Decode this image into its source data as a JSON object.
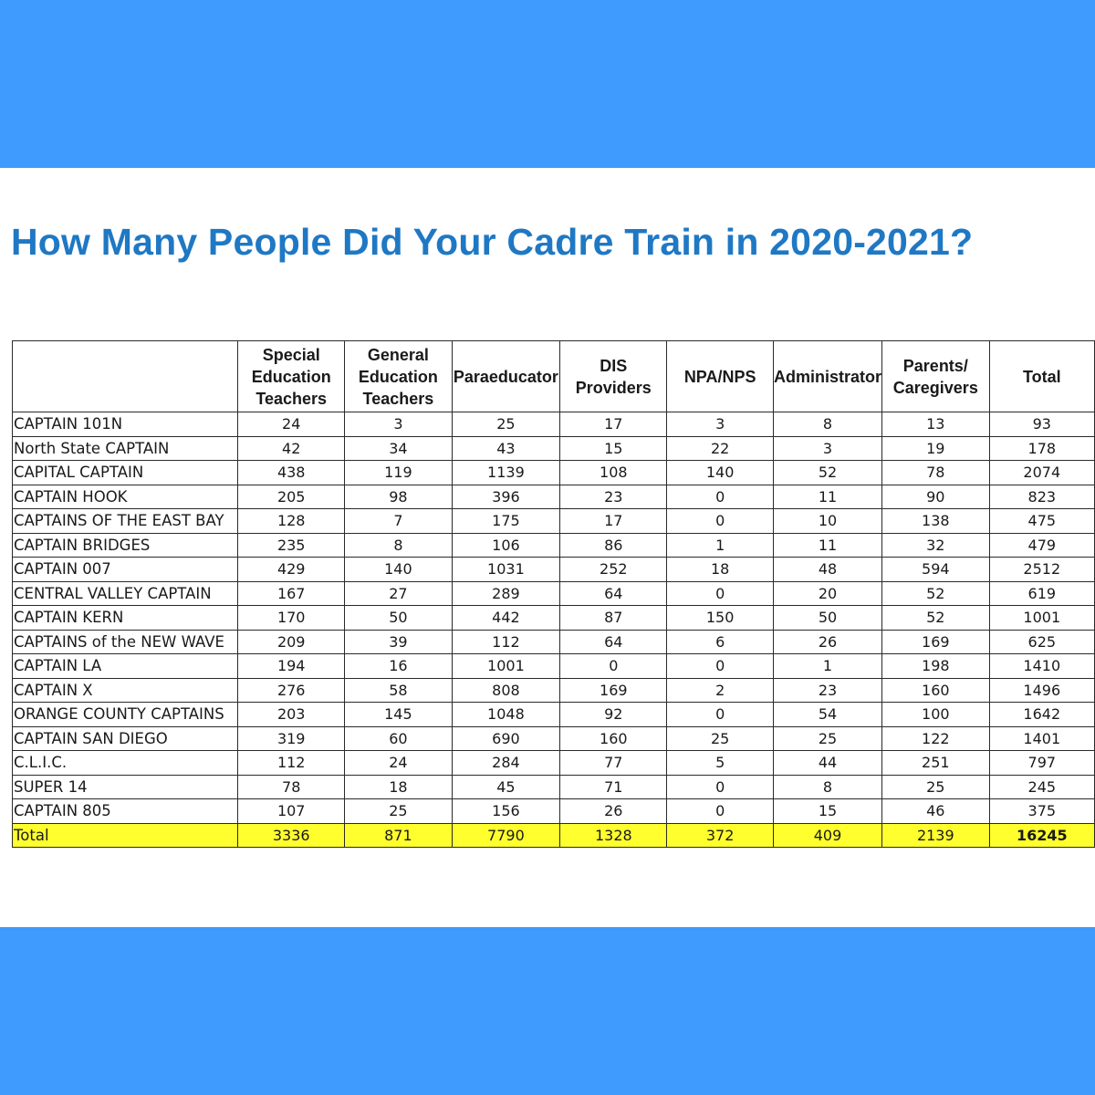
{
  "title": "How Many People Did Your Cadre Train in 2020-2021?",
  "colors": {
    "background_band": "#3f9bfd",
    "title": "#1f78c4",
    "total_highlight": "#ffff2e"
  },
  "table": {
    "headers": [
      "",
      "Special Education Teachers",
      "General Education Teachers",
      "Paraeducator",
      "DIS Providers",
      "NPA/NPS",
      "Administrator",
      "Parents/ Caregivers",
      "Total"
    ],
    "rows": [
      [
        "CAPTAIN 101N",
        "24",
        "3",
        "25",
        "17",
        "3",
        "8",
        "13",
        "93"
      ],
      [
        "North State CAPTAIN",
        "42",
        "34",
        "43",
        "15",
        "22",
        "3",
        "19",
        "178"
      ],
      [
        "CAPITAL CAPTAIN",
        "438",
        "119",
        "1139",
        "108",
        "140",
        "52",
        "78",
        "2074"
      ],
      [
        "CAPTAIN HOOK",
        "205",
        "98",
        "396",
        "23",
        "0",
        "11",
        "90",
        "823"
      ],
      [
        "CAPTAINS OF THE EAST BAY",
        "128",
        "7",
        "175",
        "17",
        "0",
        "10",
        "138",
        "475"
      ],
      [
        "CAPTAIN BRIDGES",
        "235",
        "8",
        "106",
        "86",
        "1",
        "11",
        "32",
        "479"
      ],
      [
        "CAPTAIN 007",
        "429",
        "140",
        "1031",
        "252",
        "18",
        "48",
        "594",
        "2512"
      ],
      [
        "CENTRAL VALLEY CAPTAIN",
        "167",
        "27",
        "289",
        "64",
        "0",
        "20",
        "52",
        "619"
      ],
      [
        "CAPTAIN KERN",
        "170",
        "50",
        "442",
        "87",
        "150",
        "50",
        "52",
        "1001"
      ],
      [
        "CAPTAINS of the NEW WAVE",
        "209",
        "39",
        "112",
        "64",
        "6",
        "26",
        "169",
        "625"
      ],
      [
        "CAPTAIN LA",
        "194",
        "16",
        "1001",
        "0",
        "0",
        "1",
        "198",
        "1410"
      ],
      [
        "CAPTAIN X",
        "276",
        "58",
        "808",
        "169",
        "2",
        "23",
        "160",
        "1496"
      ],
      [
        "ORANGE COUNTY CAPTAINS",
        "203",
        "145",
        "1048",
        "92",
        "0",
        "54",
        "100",
        "1642"
      ],
      [
        "CAPTAIN SAN DIEGO",
        "319",
        "60",
        "690",
        "160",
        "25",
        "25",
        "122",
        "1401"
      ],
      [
        "C.L.I.C.",
        "112",
        "24",
        "284",
        "77",
        "5",
        "44",
        "251",
        "797"
      ],
      [
        "SUPER 14",
        "78",
        "18",
        "45",
        "71",
        "0",
        "8",
        "25",
        "245"
      ],
      [
        "CAPTAIN 805",
        "107",
        "25",
        "156",
        "26",
        "0",
        "15",
        "46",
        "375"
      ]
    ],
    "total_row": [
      "Total",
      "3336",
      "871",
      "7790",
      "1328",
      "372",
      "409",
      "2139",
      "16245"
    ]
  }
}
